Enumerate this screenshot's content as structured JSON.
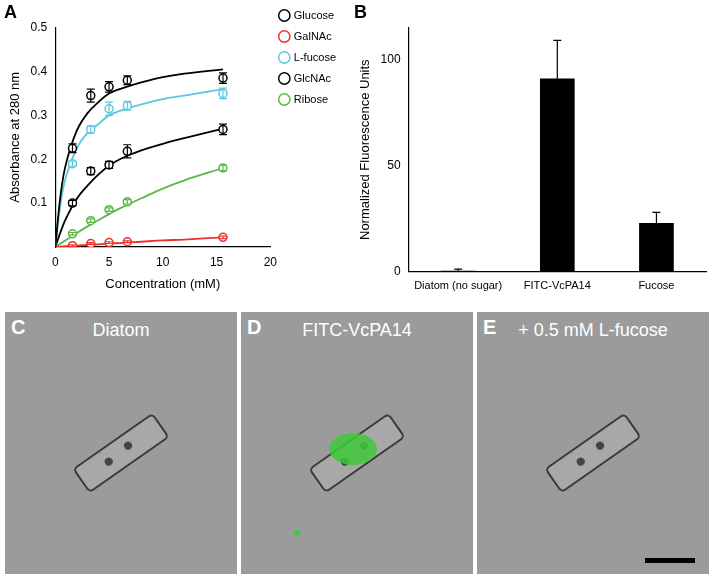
{
  "chart_data": [
    {
      "panel": "A",
      "type": "scatter",
      "x_label": "Concentration (mM)",
      "y_label": "Absorbance at 280 nm",
      "xlim": [
        0,
        20
      ],
      "xticks": [
        0,
        5,
        10,
        15,
        20
      ],
      "ylim": [
        0,
        0.5
      ],
      "yticks": [
        0.1,
        0.2,
        0.3,
        0.4,
        0.5
      ],
      "grid": false,
      "legend": "right",
      "marker": "circle",
      "x": [
        1.6,
        3.3,
        5.0,
        6.7,
        15.6
      ],
      "fit_x": [
        0,
        0.5,
        1,
        2,
        3,
        4,
        5,
        6,
        8,
        10,
        12,
        15.6
      ],
      "series": [
        {
          "name": "Glucose",
          "color": "#000000",
          "values": [
            0.225,
            0.345,
            0.365,
            0.38,
            0.385
          ],
          "errors": [
            0.01,
            0.015,
            0.012,
            0.01,
            0.012
          ],
          "fit_values": [
            0,
            0.12,
            0.19,
            0.265,
            0.305,
            0.33,
            0.35,
            0.36,
            0.375,
            0.387,
            0.395,
            0.405
          ]
        },
        {
          "name": "GalNAc",
          "color": "#e8322b",
          "values": [
            0.003,
            0.008,
            0.01,
            0.012,
            0.022
          ],
          "errors": [
            0.002,
            0.002,
            0.002,
            0.002,
            0.003
          ],
          "fit_values": [
            0,
            0.001,
            0.002,
            0.003,
            0.005,
            0.006,
            0.008,
            0.009,
            0.012,
            0.015,
            0.017,
            0.022
          ]
        },
        {
          "name": "L-fucose",
          "color": "#5bc8e0",
          "values": [
            0.19,
            0.268,
            0.315,
            0.322,
            0.35
          ],
          "errors": [
            0.006,
            0.008,
            0.015,
            0.01,
            0.012
          ],
          "fit_values": [
            0,
            0.1,
            0.16,
            0.225,
            0.26,
            0.28,
            0.3,
            0.31,
            0.325,
            0.337,
            0.345,
            0.36
          ]
        },
        {
          "name": "GlcNAc",
          "color": "#000000",
          "values": [
            0.1,
            0.173,
            0.187,
            0.218,
            0.268
          ],
          "errors": [
            0.006,
            0.008,
            0.008,
            0.015,
            0.012
          ],
          "fit_values": [
            0,
            0.035,
            0.065,
            0.11,
            0.14,
            0.165,
            0.185,
            0.2,
            0.22,
            0.235,
            0.248,
            0.27
          ]
        },
        {
          "name": "Ribose",
          "color": "#5cb845",
          "values": [
            0.03,
            0.06,
            0.085,
            0.103,
            0.18
          ],
          "errors": [
            0.003,
            0.004,
            0.004,
            0.005,
            0.006
          ],
          "fit_values": [
            0,
            0.008,
            0.016,
            0.032,
            0.047,
            0.061,
            0.075,
            0.088,
            0.111,
            0.133,
            0.152,
            0.18
          ]
        }
      ]
    },
    {
      "panel": "B",
      "type": "bar",
      "y_label": "Normalized Fluorescence Units",
      "categories": [
        "Diatom (no sugar)",
        "FITC-VcPA14",
        "Fucose"
      ],
      "values": [
        0.5,
        91,
        23
      ],
      "errors": [
        0.8,
        18,
        5
      ],
      "color": "#000000",
      "ylim": [
        0,
        115
      ],
      "yticks": [
        0,
        50,
        100
      ],
      "grid": false
    }
  ],
  "image_panels": [
    {
      "panel": "C",
      "label": "Diatom"
    },
    {
      "panel": "D",
      "label": "FITC-VcPA14"
    },
    {
      "panel": "E",
      "label": "+ 0.5 mM L-fucose"
    }
  ]
}
